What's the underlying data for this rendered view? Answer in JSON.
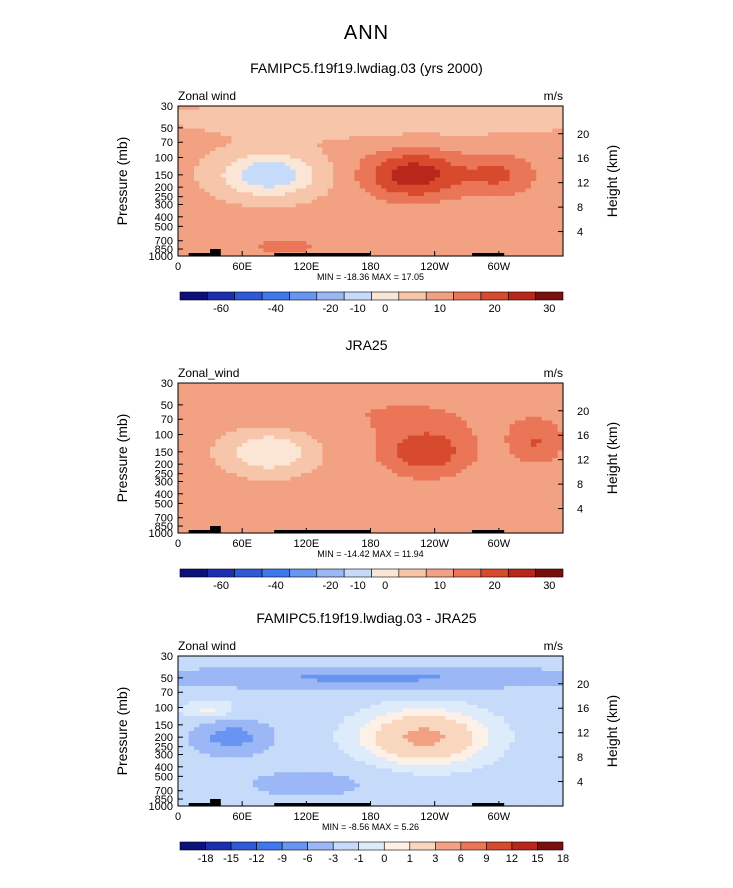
{
  "title": "ANN",
  "colors": {
    "cb_main": [
      "#0d0f7a",
      "#1c2fb0",
      "#2e5ad8",
      "#3f78ee",
      "#6895f2",
      "#9bb7f6",
      "#c6dbfa",
      "#fbe6d6",
      "#f7c6aa",
      "#f2a283",
      "#ea7557",
      "#d84a2e",
      "#b9261a",
      "#7a0e0e"
    ],
    "cb_diff": [
      "#0d0f7a",
      "#1c2fb0",
      "#2e5ad8",
      "#3f78ee",
      "#6895f2",
      "#9bb7f6",
      "#c6dbfa",
      "#deebfb",
      "#fdf0e6",
      "#f9d7bf",
      "#f2a283",
      "#ea7557",
      "#d84a2e",
      "#b9261a",
      "#7a0e0e"
    ]
  },
  "panels": [
    {
      "title": "FAMIPC5.f19f19.lwdiag.03 (yrs 2000)",
      "var_label": "Zonal wind",
      "units": "m/s",
      "minmax": "MIN = -18.36   MAX =  17.05",
      "cb_labels": [
        "-60",
        "-40",
        "-20",
        "-10",
        "0",
        "10",
        "20",
        "30"
      ]
    },
    {
      "title": "JRA25",
      "var_label": "Zonal_wind",
      "units": "m/s",
      "minmax": "MIN = -14.42   MAX =  11.94",
      "cb_labels": [
        "-60",
        "-40",
        "-20",
        "-10",
        "0",
        "10",
        "20",
        "30"
      ]
    },
    {
      "title": "FAMIPC5.f19f19.lwdiag.03 - JRA25",
      "var_label": "Zonal wind",
      "units": "m/s",
      "minmax": "MIN =  -8.56   MAX =   5.26",
      "cb_labels": [
        "-18",
        "-15",
        "-12",
        "-9",
        "-6",
        "-3",
        "-1",
        "0",
        "1",
        "3",
        "6",
        "9",
        "12",
        "15",
        "18"
      ]
    }
  ],
  "axes": {
    "ylabel_left": "Pressure (mb)",
    "ylabel_right": "Height (km)",
    "pressure_ticks": [
      "30",
      "50",
      "70",
      "100",
      "150",
      "200",
      "250",
      "300",
      "400",
      "500",
      "700",
      "850",
      "1000"
    ],
    "height_ticks": [
      "20",
      "16",
      "12",
      "8",
      "4"
    ],
    "lon_ticks": [
      "0",
      "60E",
      "120E",
      "180",
      "120W",
      "60W"
    ]
  },
  "chart_data": [
    {
      "type": "heatmap",
      "title": "FAMIPC5.f19f19.lwdiag.03 (yrs 2000)",
      "field": "Zonal wind",
      "units": "m/s",
      "x": "longitude 0-360",
      "y": "pressure 1000-30 mb",
      "min": -18.36,
      "max": 17.05,
      "levels": [
        -60,
        -50,
        -40,
        -30,
        -20,
        -15,
        -10,
        -5,
        0,
        5,
        10,
        15,
        20,
        25,
        30
      ],
      "features": [
        {
          "type": "easterly_max",
          "lon": 75,
          "pressure": 150,
          "value": -15
        },
        {
          "type": "westerly_max",
          "lon": 220,
          "pressure": 150,
          "value": 17
        },
        {
          "type": "westerly_secondary",
          "lon": 295,
          "pressure": 150,
          "value": 10
        }
      ]
    },
    {
      "type": "heatmap",
      "title": "JRA25",
      "field": "Zonal_wind",
      "units": "m/s",
      "x": "longitude 0-360",
      "y": "pressure 1000-30 mb",
      "min": -14.42,
      "max": 11.94,
      "levels": [
        -60,
        -50,
        -40,
        -30,
        -20,
        -15,
        -10,
        -5,
        0,
        5,
        10,
        15,
        20,
        25,
        30
      ],
      "features": [
        {
          "type": "easterly_max",
          "lon": 80,
          "pressure": 150,
          "value": -12
        },
        {
          "type": "westerly_max",
          "lon": 230,
          "pressure": 150,
          "value": 12
        },
        {
          "type": "westerly_secondary",
          "lon": 330,
          "pressure": 120,
          "value": 8
        }
      ]
    },
    {
      "type": "heatmap",
      "title": "FAMIPC5.f19f19.lwdiag.03 - JRA25",
      "field": "Zonal wind",
      "units": "m/s",
      "x": "longitude 0-360",
      "y": "pressure 1000-30 mb",
      "min": -8.56,
      "max": 5.26,
      "levels": [
        -18,
        -15,
        -12,
        -9,
        -6,
        -3,
        -1,
        0,
        1,
        3,
        6,
        9,
        12,
        15,
        18
      ],
      "features": [
        {
          "type": "negative_band",
          "pressure": 50,
          "value": -6
        },
        {
          "type": "positive_max",
          "lon": 230,
          "pressure": 180,
          "value": 4
        },
        {
          "type": "negative_max",
          "lon": 45,
          "pressure": 180,
          "value": -8
        }
      ]
    }
  ]
}
